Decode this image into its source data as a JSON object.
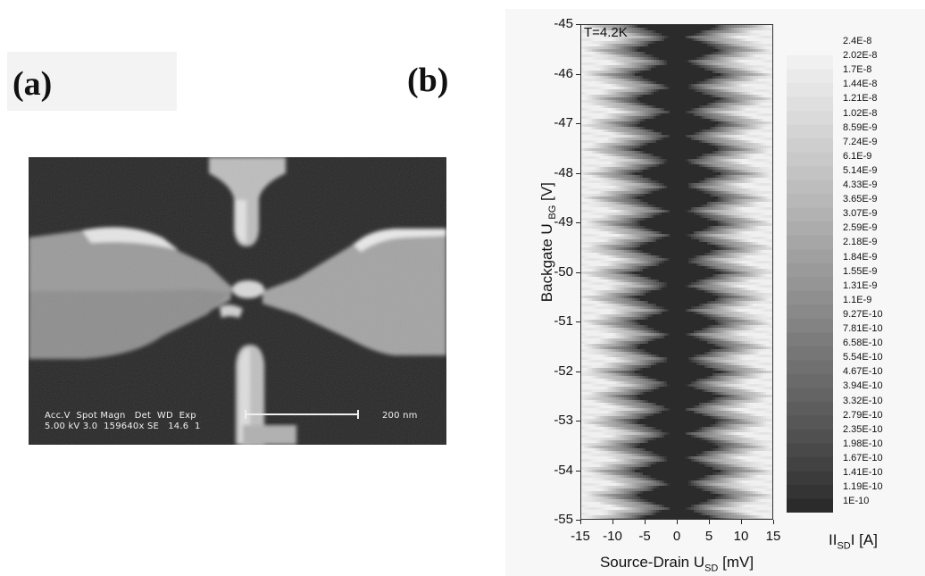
{
  "panel_a": {
    "label": "(a)"
  },
  "panel_b": {
    "label": "(b)"
  },
  "sem": {
    "line1": "Acc.V  Spot Magn   Det  WD  Exp",
    "line2": "5.00 kV 3.0  159640x SE   14.6  1",
    "scale_label": "200 nm"
  },
  "chart_data": {
    "type": "heatmap",
    "annotation": "T=4.2K",
    "xlabel_main": "Source-Drain U",
    "xlabel_sub": "SD",
    "xlabel_unit": "[mV]",
    "ylabel_main": "Backgate U",
    "ylabel_sub": "BG",
    "ylabel_unit": "[V]",
    "xlim": [
      -15,
      15
    ],
    "ylim": [
      -55,
      -45
    ],
    "x_ticks": [
      "-15",
      "-10",
      "-5",
      "0",
      "5",
      "10",
      "15"
    ],
    "y_ticks": [
      "-45",
      "-46",
      "-47",
      "-48",
      "-49",
      "-50",
      "-51",
      "-52",
      "-53",
      "-54",
      "-55"
    ],
    "colorbar_title_pre": "II",
    "colorbar_title_sub": "SD",
    "colorbar_title_post": "I  [A]",
    "colorbar_labels": [
      "2.4E-8",
      "2.02E-8",
      "1.7E-8",
      "1.44E-8",
      "1.21E-8",
      "1.02E-8",
      "8.59E-9",
      "7.24E-9",
      "6.1E-9",
      "5.14E-9",
      "4.33E-9",
      "3.65E-9",
      "3.07E-9",
      "2.59E-9",
      "2.18E-9",
      "1.84E-9",
      "1.55E-9",
      "1.31E-9",
      "1.1E-9",
      "9.27E-10",
      "7.81E-10",
      "6.58E-10",
      "5.54E-10",
      "4.67E-10",
      "3.94E-10",
      "3.32E-10",
      "2.79E-10",
      "2.35E-10",
      "1.98E-10",
      "1.67E-10",
      "1.41E-10",
      "1.19E-10",
      "1E-10"
    ],
    "colors": {
      "low": "#2b2b2b",
      "high": "#f2f2f2"
    }
  }
}
